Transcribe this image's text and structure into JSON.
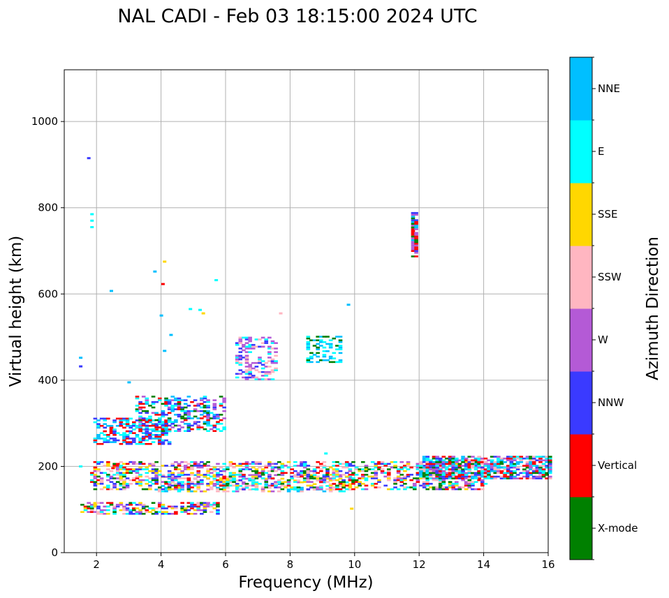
{
  "chart_data": {
    "type": "scatter",
    "title": "NAL CADI - Feb 03 18:15:00 2024 UTC",
    "xlabel": "Frequency (MHz)",
    "ylabel": "Virtual height (km)",
    "xlim": [
      1,
      16
    ],
    "ylim": [
      0,
      1120
    ],
    "xticks": [
      2,
      4,
      6,
      8,
      10,
      12,
      14,
      16
    ],
    "yticks": [
      0,
      200,
      400,
      600,
      800,
      1000
    ],
    "grid": true,
    "colorbar": {
      "label": "Azimuth Direction",
      "categories": [
        {
          "name": "X-mode",
          "color": "#008000"
        },
        {
          "name": "Vertical",
          "color": "#ff0000"
        },
        {
          "name": "NNW",
          "color": "#3a3aff"
        },
        {
          "name": "W",
          "color": "#b45ad6"
        },
        {
          "name": "SSW",
          "color": "#ffb6c1"
        },
        {
          "name": "SSE",
          "color": "#ffd700"
        },
        {
          "name": "E",
          "color": "#00ffff"
        },
        {
          "name": "NNE",
          "color": "#00bfff"
        }
      ]
    },
    "clusters": [
      {
        "label": "E region trace",
        "x": [
          1.5,
          5.7
        ],
        "y": [
          88,
          115
        ],
        "colors": [
          "NNW",
          "Vertical",
          "SSW",
          "W",
          "SSE",
          "E",
          "X-mode"
        ],
        "density": 0.55
      },
      {
        "label": "Es / E trace",
        "x": [
          3.8,
          9.8
        ],
        "y": [
          140,
          180
        ],
        "colors": [
          "E",
          "NNE",
          "SSW",
          "W",
          "SSE"
        ],
        "density": 0.35
      },
      {
        "label": "F region low freq",
        "x": [
          1.8,
          14.0
        ],
        "y": [
          145,
          210
        ],
        "colors": [
          "SSE",
          "Vertical",
          "X-mode",
          "NNW",
          "W",
          "SSW",
          "E"
        ],
        "density": 0.45
      },
      {
        "label": "F region high freq",
        "x": [
          12.0,
          16.0
        ],
        "y": [
          170,
          222
        ],
        "colors": [
          "Vertical",
          "X-mode",
          "W",
          "NNW",
          "SSW",
          "NNE",
          "E"
        ],
        "density": 0.75
      },
      {
        "label": "F trace rising",
        "x": [
          1.9,
          4.3
        ],
        "y": [
          250,
          310
        ],
        "colors": [
          "NNE",
          "E",
          "Vertical",
          "NNW"
        ],
        "density": 0.5
      },
      {
        "label": "F trace upper",
        "x": [
          3.2,
          5.9
        ],
        "y": [
          280,
          360
        ],
        "colors": [
          "NNE",
          "E",
          "Vertical",
          "X-mode",
          "W",
          "NNW"
        ],
        "density": 0.4
      },
      {
        "label": "Oblique echoes",
        "x": [
          6.3,
          7.5
        ],
        "y": [
          400,
          500
        ],
        "colors": [
          "SSW",
          "W",
          "E",
          "NNW"
        ],
        "density": 0.35
      },
      {
        "label": "Oblique echoes 2",
        "x": [
          8.5,
          9.5
        ],
        "y": [
          440,
          500
        ],
        "colors": [
          "E",
          "NNE",
          "X-mode"
        ],
        "density": 0.4
      },
      {
        "label": "High echo at 12 MHz",
        "x": [
          11.75,
          11.95
        ],
        "y": [
          685,
          790
        ],
        "colors": [
          "Vertical",
          "NNE",
          "W",
          "NNW",
          "X-mode"
        ],
        "density": 0.8
      }
    ],
    "points": [
      {
        "x": 1.5,
        "y": 452,
        "c": "NNE"
      },
      {
        "x": 1.5,
        "y": 432,
        "c": "NNW"
      },
      {
        "x": 1.75,
        "y": 915,
        "c": "NNW"
      },
      {
        "x": 1.85,
        "y": 785,
        "c": "E"
      },
      {
        "x": 1.85,
        "y": 770,
        "c": "E"
      },
      {
        "x": 1.85,
        "y": 755,
        "c": "E"
      },
      {
        "x": 2.45,
        "y": 607,
        "c": "NNE"
      },
      {
        "x": 3.0,
        "y": 395,
        "c": "NNE"
      },
      {
        "x": 3.8,
        "y": 652,
        "c": "NNE"
      },
      {
        "x": 4.1,
        "y": 675,
        "c": "SSE"
      },
      {
        "x": 4.05,
        "y": 623,
        "c": "Vertical"
      },
      {
        "x": 4.0,
        "y": 550,
        "c": "NNE"
      },
      {
        "x": 4.3,
        "y": 505,
        "c": "NNE"
      },
      {
        "x": 4.1,
        "y": 468,
        "c": "NNE"
      },
      {
        "x": 4.9,
        "y": 565,
        "c": "E"
      },
      {
        "x": 5.2,
        "y": 563,
        "c": "E"
      },
      {
        "x": 5.3,
        "y": 555,
        "c": "SSE"
      },
      {
        "x": 5.7,
        "y": 632,
        "c": "E"
      },
      {
        "x": 7.7,
        "y": 555,
        "c": "SSW"
      },
      {
        "x": 9.8,
        "y": 575,
        "c": "NNE"
      },
      {
        "x": 9.1,
        "y": 230,
        "c": "E"
      },
      {
        "x": 9.9,
        "y": 102,
        "c": "SSE"
      },
      {
        "x": 2.5,
        "y": 196,
        "c": "Vertical"
      },
      {
        "x": 1.5,
        "y": 200,
        "c": "E"
      }
    ]
  }
}
